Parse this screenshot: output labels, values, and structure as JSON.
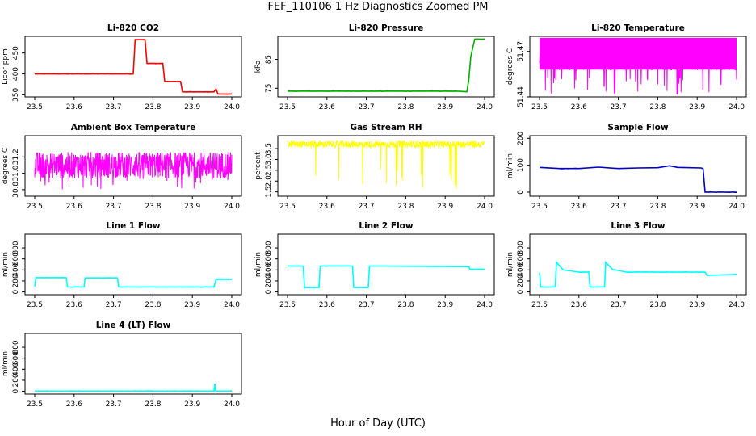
{
  "figure": {
    "title": "FEF_110106  1 Hz Diagnostics Zoomed PM",
    "xlabel": "Hour of Day (UTC)"
  },
  "chart_data": [
    {
      "type": "line",
      "title": "Li-820 CO2",
      "ylabel": "Licor ppm",
      "xlim": [
        23.5,
        24.0
      ],
      "ylim": [
        345,
        490
      ],
      "xticks": [
        "23.5",
        "23.6",
        "23.7",
        "23.8",
        "23.9",
        "24.0"
      ],
      "yticks": [
        "350",
        "400",
        "450"
      ],
      "color": "#ff0000",
      "series": [
        {
          "x": [
            23.5,
            23.75,
            23.755,
            23.78,
            23.785,
            23.825,
            23.83,
            23.87,
            23.875,
            23.955,
            23.96,
            23.965,
            24.0
          ],
          "y": [
            400,
            400,
            482,
            482,
            425,
            425,
            382,
            382,
            357,
            357,
            364,
            352,
            352
          ]
        }
      ]
    },
    {
      "type": "line",
      "title": "Li-820 Pressure",
      "ylabel": "kPa",
      "xlim": [
        23.5,
        24.0
      ],
      "ylim": [
        72,
        93
      ],
      "xticks": [
        "23.5",
        "23.6",
        "23.7",
        "23.8",
        "23.9",
        "24.0"
      ],
      "yticks": [
        "75",
        "85"
      ],
      "color": "#00b000",
      "series": [
        {
          "x": [
            23.5,
            23.93,
            23.955,
            23.96,
            23.965,
            23.975,
            24.0
          ],
          "y": [
            74,
            74,
            73.8,
            78,
            86,
            92,
            92
          ]
        }
      ]
    },
    {
      "type": "line",
      "title": "Li-820 Temperature",
      "ylabel": "degrees C",
      "xlim": [
        23.5,
        24.0
      ],
      "ylim": [
        51.44,
        51.48
      ],
      "xticks": [
        "23.5",
        "23.6",
        "23.7",
        "23.8",
        "23.9",
        "24.0"
      ],
      "yticks": [
        "51.44",
        "51.47"
      ],
      "color": "#ff00ff",
      "noise": {
        "center": 51.465,
        "amp": 0.0075,
        "spike_to": 51.441,
        "spike_prob": 0.06,
        "fill_band": [
          51.458,
          51.479
        ],
        "fill_range": [
          23.5,
          24.0
        ]
      }
    },
    {
      "type": "line",
      "title": "Ambient Box Temperature",
      "ylabel": "degrees C",
      "xlim": [
        23.5,
        24.0
      ],
      "ylim": [
        30.72,
        31.46
      ],
      "xticks": [
        "23.5",
        "23.6",
        "23.7",
        "23.8",
        "23.9",
        "24.0"
      ],
      "yticks": [
        "30.8",
        "31.0",
        "31.2"
      ],
      "color": "#ff00ff",
      "noise": {
        "center": 31.1,
        "amp": 0.16,
        "spike_to": 30.8,
        "spike_prob": 0.05
      }
    },
    {
      "type": "line",
      "title": "Gas Stream RH",
      "ylabel": "percent",
      "xlim": [
        23.5,
        24.0
      ],
      "ylim": [
        1.3,
        4.1
      ],
      "xticks": [
        "23.5",
        "23.6",
        "23.7",
        "23.8",
        "23.9",
        "24.0"
      ],
      "yticks": [
        "1.5",
        "2.0",
        "2.5",
        "3.0",
        "3.5"
      ],
      "color": "#ffff00",
      "noise": {
        "center": 3.7,
        "amp": 0.15,
        "spike_to": 1.5,
        "spike_prob": 0.03
      }
    },
    {
      "type": "line",
      "title": "Sample Flow",
      "ylabel": "ml/min",
      "xlim": [
        23.5,
        24.0
      ],
      "ylim": [
        -15,
        210
      ],
      "xticks": [
        "23.5",
        "23.6",
        "23.7",
        "23.8",
        "23.9",
        "24.0"
      ],
      "yticks": [
        "0",
        "100",
        "200"
      ],
      "color": "#0000cc",
      "series": [
        {
          "x": [
            23.5,
            23.55,
            23.6,
            23.65,
            23.7,
            23.75,
            23.8,
            23.83,
            23.85,
            23.91,
            23.915,
            23.92,
            24.0
          ],
          "y": [
            92,
            88,
            88,
            93,
            88,
            90,
            91,
            98,
            92,
            90,
            88,
            0,
            0
          ]
        }
      ]
    },
    {
      "type": "line",
      "title": "Line 1 Flow",
      "ylabel": "ml/min",
      "xlim": [
        23.5,
        24.0
      ],
      "ylim": [
        -50,
        1050
      ],
      "xticks": [
        "23.5",
        "23.6",
        "23.7",
        "23.8",
        "23.9",
        "24.0"
      ],
      "yticks": [
        "0",
        "200",
        "400",
        "600",
        "800"
      ],
      "color": "#00ffff",
      "series": [
        {
          "x": [
            23.5,
            23.503,
            23.58,
            23.583,
            23.625,
            23.628,
            23.71,
            23.713,
            23.955,
            23.96,
            24.0
          ],
          "y": [
            100,
            260,
            260,
            90,
            90,
            255,
            255,
            90,
            90,
            230,
            230
          ]
        }
      ]
    },
    {
      "type": "line",
      "title": "Line 2 Flow",
      "ylabel": "ml/min",
      "xlim": [
        23.5,
        24.0
      ],
      "ylim": [
        -50,
        1050
      ],
      "xticks": [
        "23.5",
        "23.6",
        "23.7",
        "23.8",
        "23.9",
        "24.0"
      ],
      "yticks": [
        "0",
        "200",
        "400",
        "600",
        "800"
      ],
      "color": "#00ffff",
      "series": [
        {
          "x": [
            23.5,
            23.54,
            23.543,
            23.58,
            23.583,
            23.665,
            23.668,
            23.705,
            23.708,
            23.96,
            23.963,
            24.0
          ],
          "y": [
            470,
            470,
            80,
            80,
            470,
            470,
            80,
            80,
            470,
            460,
            410,
            410
          ]
        }
      ]
    },
    {
      "type": "line",
      "title": "Line 3 Flow",
      "ylabel": "ml/min",
      "xlim": [
        23.5,
        24.0
      ],
      "ylim": [
        -50,
        1050
      ],
      "xticks": [
        "23.5",
        "23.6",
        "23.7",
        "23.8",
        "23.9",
        "24.0"
      ],
      "yticks": [
        "0",
        "200",
        "400",
        "600",
        "800"
      ],
      "color": "#00ffff",
      "series": [
        {
          "x": [
            23.5,
            23.503,
            23.54,
            23.543,
            23.56,
            23.6,
            23.625,
            23.628,
            23.665,
            23.668,
            23.685,
            23.72,
            23.92,
            23.925,
            24.0
          ],
          "y": [
            350,
            90,
            90,
            540,
            400,
            360,
            360,
            90,
            90,
            540,
            410,
            360,
            360,
            300,
            320
          ]
        }
      ]
    },
    {
      "type": "line",
      "title": "Line 4 (LT) Flow",
      "ylabel": "ml/min",
      "xlim": [
        23.5,
        24.0
      ],
      "ylim": [
        -50,
        1050
      ],
      "xticks": [
        "23.5",
        "23.6",
        "23.7",
        "23.8",
        "23.9",
        "24.0"
      ],
      "yticks": [
        "0",
        "200",
        "400",
        "600",
        "800"
      ],
      "color": "#00ffff",
      "series": [
        {
          "x": [
            23.5,
            23.955,
            23.957,
            23.959,
            23.961,
            24.0
          ],
          "y": [
            5,
            5,
            140,
            10,
            5,
            5
          ]
        }
      ]
    }
  ]
}
